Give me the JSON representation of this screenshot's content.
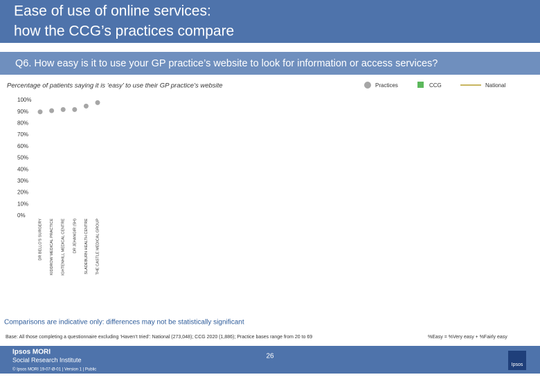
{
  "header": {
    "title": [
      "Ease of use of online services:",
      "how the CCG’s practices compare"
    ],
    "question": "Q6. How easy is it to use your GP practice’s website to look for information or access services?"
  },
  "chart_data": {
    "type": "dot",
    "subtitle": "Percentage of patients saying it is ‘easy’ to use their GP practice’s website",
    "categories": [
      "DR BELLO'S SURGERY",
      "KIDDROW MEDICAL PRACTICE",
      "IGHTENHILL MEDICAL CENTRE",
      "DR JEHANGIR (SH)",
      "SLADEBURN HEALTH CENTRE",
      "THE CASTLE MEDICAL GROUP"
    ],
    "series": [
      {
        "name": "Practices",
        "color": "#a6a6a6",
        "values": [
          90,
          91,
          92,
          92,
          95,
          98
        ]
      }
    ],
    "legend": [
      {
        "name": "CCG",
        "color": "#5cb85c"
      },
      {
        "name": "National",
        "color": "#c8b560"
      }
    ],
    "ylim": [
      0,
      100
    ],
    "yticks": [
      {
        "value": 0,
        "label": "0%"
      },
      {
        "value": 10,
        "label": "10%"
      },
      {
        "value": 20,
        "label": "20%"
      },
      {
        "value": 30,
        "label": "30%"
      },
      {
        "value": 40,
        "label": "40%"
      },
      {
        "value": 50,
        "label": "50%"
      },
      {
        "value": 60,
        "label": "60%"
      },
      {
        "value": 70,
        "label": "70%"
      },
      {
        "value": 80,
        "label": "80%"
      },
      {
        "value": 90,
        "label": "90%"
      },
      {
        "value": 100,
        "label": "100%"
      }
    ]
  },
  "notes": {
    "comparisons": "Comparisons are indicative only: differences may not be statistically significant",
    "base": "Base: All those completing a questionnaire excluding ‘Haven’t tried’: National (273,048); CCG 2020 (1,886); Practice bases range from 20 to 69",
    "definition": "%Easy = %Very easy + %Fairly easy"
  },
  "footer": {
    "brand": "Ipsos MORI",
    "institute": "Social Research Institute",
    "page": "26",
    "copyright": "© Ipsos MORI    19-07-Ø-01 | Version 1 | Public",
    "logo": "Ipsos"
  }
}
